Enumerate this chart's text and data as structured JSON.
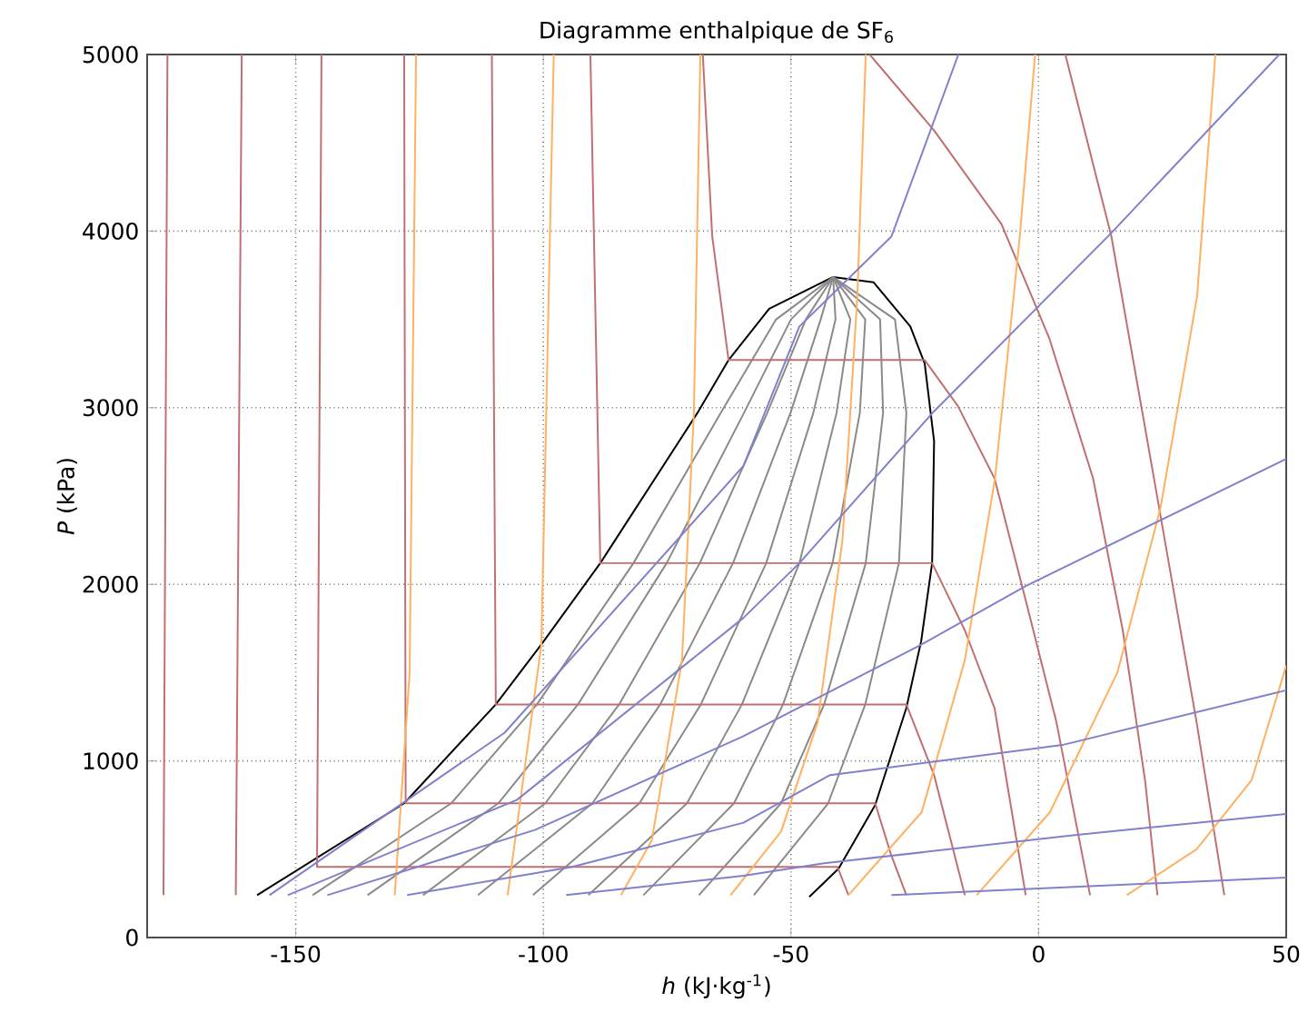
{
  "chart_data": {
    "type": "line",
    "title": "Diagramme enthalpique de SF$_{6}$",
    "xlabel": "*h* (kJ·kg$^{-1}$)",
    "ylabel": "*P* (kPa)",
    "xlim": [
      -180,
      50
    ],
    "ylim": [
      0,
      5000
    ],
    "xticks": [
      -150,
      -100,
      -50,
      0,
      50
    ],
    "yticks": [
      0,
      1000,
      2000,
      3000,
      4000,
      5000
    ],
    "grid": true,
    "marker": "none",
    "line_style": "solid",
    "series": [
      {
        "color": "#000000",
        "x": [
          -157.8,
          -128.1,
          -109.6,
          -100.4,
          -88.5,
          -68.9,
          -62.6,
          -54.4,
          -41.5,
          -33.3,
          -25.9,
          -23,
          -21.1,
          -21.5,
          -23.7,
          -26.7,
          -33,
          -40.4,
          -46.3
        ],
        "values": [
          240,
          760,
          1320,
          1660,
          2120,
          2970,
          3270,
          3560,
          3740,
          3710,
          3460,
          3250,
          2810,
          2120,
          1680,
          1300,
          750,
          390,
          230
        ]
      },
      {
        "color": "#8a8a8a",
        "x": [
          -146.6,
          -118.6,
          -101.3,
          -81.8,
          -64.2,
          -53,
          -41.5
        ],
        "values": [
          240,
          760,
          1320,
          2120,
          2970,
          3500,
          3740
        ]
      },
      {
        "color": "#8a8a8a",
        "x": [
          -135.5,
          -109.1,
          -93.0,
          -75.1,
          -59.5,
          -50,
          -41.5
        ],
        "values": [
          240,
          760,
          1320,
          2120,
          2970,
          3500,
          3740
        ]
      },
      {
        "color": "#8a8a8a",
        "x": [
          -124.3,
          -99.6,
          -84.7,
          -68.4,
          -54.8,
          -47,
          -41.5
        ],
        "values": [
          240,
          760,
          1320,
          2120,
          2970,
          3500,
          3740
        ]
      },
      {
        "color": "#8a8a8a",
        "x": [
          -113.2,
          -90.1,
          -76.4,
          -61.7,
          -50.1,
          -44,
          -41.5
        ],
        "values": [
          240,
          760,
          1320,
          2120,
          2970,
          3500,
          3740
        ]
      },
      {
        "color": "#8a8a8a",
        "x": [
          -102.1,
          -80.6,
          -68.2,
          -55.0,
          -45.5,
          -41,
          -41.5
        ],
        "values": [
          240,
          760,
          1320,
          2120,
          2970,
          3500,
          3740
        ]
      },
      {
        "color": "#8a8a8a",
        "x": [
          -90.9,
          -71.0,
          -59.9,
          -48.3,
          -40.8,
          -38,
          -41.5
        ],
        "values": [
          240,
          760,
          1320,
          2120,
          2970,
          3500,
          3740
        ]
      },
      {
        "color": "#8a8a8a",
        "x": [
          -79.8,
          -61.5,
          -51.6,
          -41.6,
          -36.1,
          -35,
          -41.5
        ],
        "values": [
          240,
          760,
          1320,
          2120,
          2970,
          3500,
          3740
        ]
      },
      {
        "color": "#8a8a8a",
        "x": [
          -68.6,
          -52.0,
          -43.3,
          -34.9,
          -31.4,
          -32,
          -41.5
        ],
        "values": [
          240,
          760,
          1320,
          2120,
          2970,
          3500,
          3740
        ]
      },
      {
        "color": "#8a8a8a",
        "x": [
          -57.5,
          -42.5,
          -35.0,
          -28.2,
          -26.7,
          -29,
          -41.5
        ],
        "values": [
          240,
          760,
          1320,
          2120,
          2970,
          3500,
          3740
        ]
      },
      {
        "color": "#c07070",
        "x": [
          -175.9,
          -176.7
        ],
        "values": [
          5000,
          240
        ]
      },
      {
        "color": "#c07070",
        "x": [
          -160.9,
          -162.1
        ],
        "values": [
          5000,
          240
        ]
      },
      {
        "color": "#c07070",
        "x": [
          -144.8,
          -145.7,
          -40.6,
          -38.4
        ],
        "values": [
          5000,
          400,
          400,
          240
        ]
      },
      {
        "color": "#c07070",
        "x": [
          -128.1,
          -127.8,
          -33,
          -29.8,
          -26.7
        ],
        "values": [
          5000,
          760,
          760,
          470,
          240
        ]
      },
      {
        "color": "#c07070",
        "x": [
          -110.4,
          -109.6,
          -26.7,
          -21.1,
          -14.9
        ],
        "values": [
          5000,
          1320,
          1320,
          920,
          240
        ]
      },
      {
        "color": "#c07070",
        "x": [
          -90.5,
          -88.5,
          -21.5,
          -14.9,
          -8.9,
          -2.6
        ],
        "values": [
          5000,
          2120,
          2120,
          1740,
          1300,
          240
        ]
      },
      {
        "color": "#c07070",
        "x": [
          -67.8,
          -65.9,
          -62.6,
          -23,
          -16.3,
          -8.9,
          -2.6,
          3.6,
          10.4
        ],
        "values": [
          5000,
          3970,
          3270,
          3270,
          3010,
          2600,
          1910,
          1220,
          240
        ]
      },
      {
        "color": "#c07070",
        "x": [
          -34.1,
          -21.1,
          -7.5,
          2.2,
          11,
          17,
          21.5,
          24
        ],
        "values": [
          5000,
          4570,
          4040,
          3390,
          2600,
          1740,
          890,
          240
        ]
      },
      {
        "color": "#c07070",
        "x": [
          5.4,
          14.7,
          23.3,
          31.9,
          37.5
        ],
        "values": [
          5000,
          3970,
          2600,
          1220,
          240
        ]
      },
      {
        "color": "#ffb060",
        "x": [
          -125.7,
          -127,
          -130
        ],
        "values": [
          5000,
          1500,
          240
        ]
      },
      {
        "color": "#ffb060",
        "x": [
          -97.9,
          -100.4,
          -107.2
        ],
        "values": [
          5000,
          1660,
          240
        ]
      },
      {
        "color": "#ffb060",
        "x": [
          -68.3,
          -69.6,
          -72,
          -78.1,
          -84.3
        ],
        "values": [
          5000,
          2970,
          1570,
          550,
          240
        ]
      },
      {
        "color": "#ffb060",
        "x": [
          -34.9,
          -36.6,
          -39.6,
          -44.6,
          -52,
          -62.2
        ],
        "values": [
          5000,
          3630,
          2250,
          1220,
          600,
          240
        ]
      },
      {
        "color": "#ffb060",
        "x": [
          -0.7,
          -3.8,
          -8.8,
          -14.9,
          -23.6,
          -38.4
        ],
        "values": [
          5000,
          3970,
          2600,
          1570,
          710,
          240
        ]
      },
      {
        "color": "#ffb060",
        "x": [
          35.7,
          32,
          24.6,
          15.9,
          2.3,
          -12.5
        ],
        "values": [
          5000,
          3630,
          2430,
          1500,
          710,
          240
        ]
      },
      {
        "color": "#ffb060",
        "x": [
          50,
          43,
          31.9,
          17.8
        ],
        "values": [
          1540,
          890,
          500,
          240
        ]
      },
      {
        "color": "#8080cc",
        "x": [
          -155.3,
          -107.8,
          -59.6,
          -48.3,
          -29.7,
          -16.2
        ],
        "values": [
          240,
          1160,
          2670,
          3460,
          3970,
          5000
        ]
      },
      {
        "color": "#8080cc",
        "x": [
          -151.6,
          -105.3,
          -59.6,
          -48.3,
          -21.1,
          14.7,
          48.6
        ],
        "values": [
          240,
          780,
          1810,
          2120,
          2980,
          3990,
          5000
        ]
      },
      {
        "color": "#8080cc",
        "x": [
          -143.6,
          -101.6,
          -59.6,
          -23.6,
          -2.6,
          50
        ],
        "values": [
          240,
          610,
          1140,
          1660,
          1990,
          2710
        ]
      },
      {
        "color": "#8080cc",
        "x": [
          -127.5,
          -94.2,
          -59.6,
          -42.1,
          4.8,
          50
        ],
        "values": [
          240,
          400,
          650,
          920,
          1090,
          1400
        ]
      },
      {
        "color": "#8080cc",
        "x": [
          -95.4,
          -59.6,
          -43.3,
          7.3,
          50
        ],
        "values": [
          240,
          350,
          420,
          580,
          700
        ]
      },
      {
        "color": "#8080cc",
        "x": [
          -29.7,
          50
        ],
        "values": [
          240,
          340
        ]
      }
    ]
  }
}
